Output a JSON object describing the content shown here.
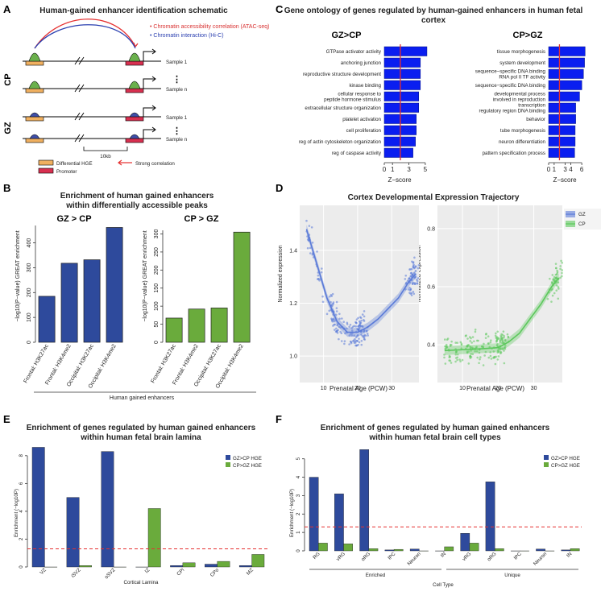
{
  "colors": {
    "blue": "#2e4a9c",
    "green": "#6aab3c",
    "red": "#e53030",
    "goBlue": "#0a1ef0",
    "hge": "#f0b060",
    "promoter": "#d83050",
    "peak": "#6ab04c",
    "peakBlue": "#3f4fa8",
    "gzBlue": "#5a7ad8",
    "cpGreen": "#5cc85c"
  },
  "panelA": {
    "label": "A",
    "title": "Human-gained enhancer identification schematic",
    "legend_atac": "• Chromatin accessibility correlation (ATAC-seq)",
    "legend_hic": "• Chromatin interaction (Hi-C)",
    "cp": "CP",
    "gz": "GZ",
    "sample1": "Sample 1",
    "samplen": "Sample n",
    "dots": "⋮",
    "scale": "10kb",
    "key_hge": "Differential HGE",
    "key_promoter": "Promoter",
    "key_corr": "Strong correlation"
  },
  "panelB": {
    "label": "B",
    "title1": "Enrichment of human gained enhancers",
    "title2": "within differentially accessible peaks",
    "xgroup": "Human gained enhancers",
    "ylabel": "−log10(P−value) GREAT enrichment"
  },
  "panelC": {
    "label": "C",
    "title1": "Gene ontology of genes regulated by human-gained enhancers in human fetal",
    "title2": "cortex",
    "xlabel": "Z−score"
  },
  "panelD": {
    "label": "D",
    "title": "Cortex Developmental Expression Trajectory",
    "xlabel": "Prenatal Age (PCW)",
    "ylabel": "Normalized expression",
    "legend_gz": "GZ",
    "legend_cp": "CP"
  },
  "panelE": {
    "label": "E",
    "title1": "Enrichment of genes regulated by human gained enhancers",
    "title2": "within human fetal brain lamina",
    "ylabel": "Enrichment (−log10P)",
    "xlabel": "Cortical Lamina",
    "legend1": "GZ>CP HGE",
    "legend2": "CP>GZ HGE"
  },
  "panelF": {
    "label": "F",
    "title1": "Enrichment of genes regulated by human gained enhancers",
    "title2": "within human fetal brain cell types",
    "ylabel": "Enrichment (−log10P)",
    "xlabel": "Cell Type",
    "group1": "Enriched",
    "group2": "Unique",
    "legend1": "GZ>CP HGE",
    "legend2": "CP>GZ HGE"
  },
  "chart_data": [
    {
      "id": "B1",
      "type": "bar",
      "title": "GZ > CP",
      "categories": [
        "Frontal: H3K27ac",
        "Frontal: H3K4me2",
        "Occipital: H3K27ac",
        "Occipital: H3K4me2"
      ],
      "values": [
        185,
        318,
        332,
        462
      ],
      "ylim": [
        0,
        470
      ],
      "yticks": [
        0,
        100,
        200,
        300,
        400
      ],
      "ylabel": "−log10(P−value) GREAT enrichment"
    },
    {
      "id": "B2",
      "type": "bar",
      "title": "CP > GZ",
      "categories": [
        "Frontal: H3K27ac",
        "Frontal: H3K4me2",
        "Occipital: H3K27ac",
        "Occipital: H3K4me2"
      ],
      "values": [
        67,
        92,
        95,
        305
      ],
      "ylim": [
        0,
        310
      ],
      "yticks": [
        0,
        50,
        100,
        150,
        200,
        250,
        300
      ],
      "ylabel": "−log10(P−value) GREAT enrichment"
    },
    {
      "id": "C1",
      "type": "bar",
      "orientation": "horizontal",
      "title": "GZ>CP",
      "categories": [
        "GTPase activator activity",
        "anchoring junction",
        "reproductive structure development",
        "kinase binding",
        "cellular response to peptide hormone stimulus",
        "extracellular structure organization",
        "platelet activation",
        "cell proliferation",
        "reg of actin cytoskeleton organization",
        "reg of caspase activity"
      ],
      "values": [
        5.2,
        4.4,
        4.4,
        4.4,
        4.2,
        4.2,
        3.9,
        3.9,
        3.8,
        3.5
      ],
      "xlim": [
        0,
        5.5
      ],
      "xticks": [
        0,
        1,
        3,
        5
      ],
      "threshold": 1.96,
      "xlabel": "Z−score"
    },
    {
      "id": "C2",
      "type": "bar",
      "orientation": "horizontal",
      "title": "CP>GZ",
      "categories": [
        "tissue morphogenesis",
        "system development",
        "sequence−specific DNA binding RNA pol II TF activity",
        "sequence−specific DNA binding",
        "developmental process involved in reproduction",
        "transcription regulatory region DNA binding",
        "behavior",
        "tube morphogenesis",
        "neuron differentiation",
        "pattern specification process"
      ],
      "values": [
        6.6,
        6.5,
        6.3,
        6.0,
        5.6,
        4.9,
        4.9,
        4.8,
        4.8,
        4.7
      ],
      "xlim": [
        0,
        7
      ],
      "xticks": [
        0,
        1,
        3,
        4,
        6
      ],
      "threshold": 1.96,
      "xlabel": "Z−score"
    },
    {
      "id": "D1",
      "type": "scatter",
      "name": "GZ",
      "xlim": [
        3,
        38
      ],
      "ylim": [
        0.9,
        1.57
      ],
      "xticks": [
        10,
        20,
        30
      ],
      "yticks": [
        1.0,
        1.2,
        1.4
      ],
      "trend": [
        [
          5,
          1.48
        ],
        [
          8,
          1.35
        ],
        [
          11,
          1.22
        ],
        [
          14,
          1.13
        ],
        [
          17,
          1.09
        ],
        [
          20,
          1.09
        ],
        [
          23,
          1.11
        ],
        [
          26,
          1.14
        ],
        [
          29,
          1.18
        ],
        [
          32,
          1.22
        ],
        [
          35,
          1.28
        ],
        [
          37,
          1.31
        ]
      ]
    },
    {
      "id": "D2",
      "type": "scatter",
      "name": "CP",
      "xlim": [
        3,
        38
      ],
      "ylim": [
        0.27,
        0.88
      ],
      "xticks": [
        10,
        20,
        30
      ],
      "yticks": [
        0.4,
        0.6,
        0.8
      ],
      "trend": [
        [
          5,
          0.38
        ],
        [
          10,
          0.383
        ],
        [
          15,
          0.386
        ],
        [
          20,
          0.39
        ],
        [
          23,
          0.41
        ],
        [
          26,
          0.44
        ],
        [
          29,
          0.49
        ],
        [
          32,
          0.54
        ],
        [
          35,
          0.6
        ],
        [
          37,
          0.63
        ]
      ]
    },
    {
      "id": "E",
      "type": "bar",
      "categories": [
        "VZ",
        "iSVZ",
        "oSVZ",
        "IZ",
        "CPi",
        "CPo",
        "MZ"
      ],
      "series": [
        {
          "name": "GZ>CP HGE",
          "values": [
            8.6,
            5.0,
            8.3,
            0.0,
            0.1,
            0.2,
            0.1
          ]
        },
        {
          "name": "CP>GZ HGE",
          "values": [
            0.0,
            0.1,
            0.0,
            4.2,
            0.3,
            0.4,
            0.9
          ]
        }
      ],
      "ylim": [
        0,
        8.8
      ],
      "yticks": [
        0,
        2,
        4,
        6,
        8
      ],
      "threshold": 1.3,
      "xlabel": "Cortical Lamina"
    },
    {
      "id": "F",
      "type": "bar",
      "categories": [
        "RG",
        "vRG",
        "oRG",
        "IPC",
        "Neuron",
        "IN",
        "vRG",
        "oRG",
        "IPC",
        "Neuron",
        "IN"
      ],
      "series": [
        {
          "name": "GZ>CP HGE",
          "values": [
            4.0,
            3.1,
            5.5,
            0.05,
            0.1,
            0.0,
            0.95,
            3.75,
            0.0,
            0.1,
            0.05
          ]
        },
        {
          "name": "CP>GZ HGE",
          "values": [
            0.42,
            0.38,
            0.12,
            0.08,
            0.0,
            0.22,
            0.42,
            0.12,
            0.0,
            0.0,
            0.12
          ]
        }
      ],
      "ylim": [
        0,
        5.6
      ],
      "yticks": [
        0,
        1,
        2,
        3,
        4,
        5
      ],
      "threshold": 1.3,
      "xlabel": "Cell Type",
      "groups": [
        "Enriched",
        "Unique"
      ]
    }
  ]
}
